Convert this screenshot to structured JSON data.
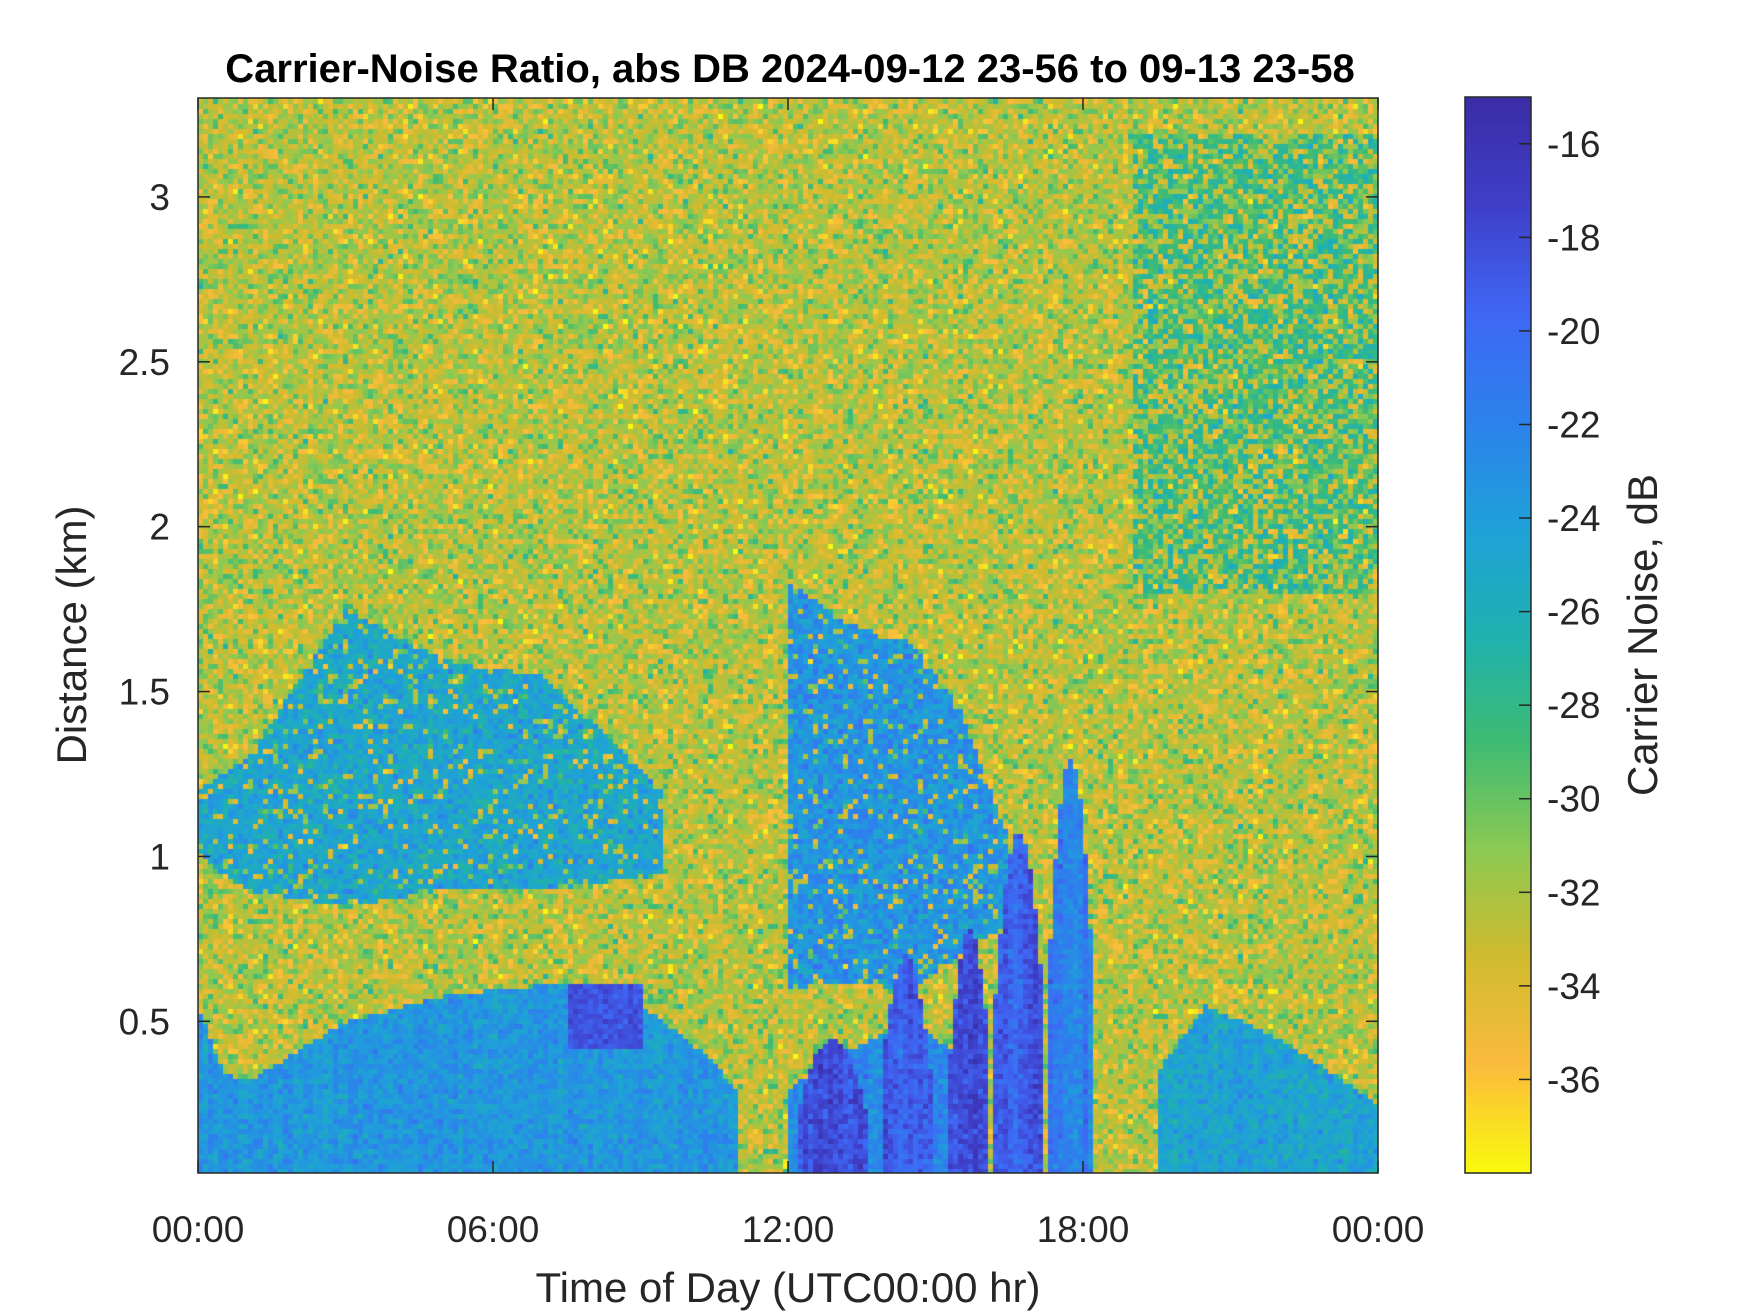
{
  "chart_data": {
    "type": "heatmap",
    "title": "Carrier-Noise Ratio, abs DB 2024-09-12 23-56 to 09-13 23-58",
    "xlabel": "Time of Day (UTC00:00 hr)",
    "ylabel": "Distance (km)",
    "xlim": [
      0,
      24
    ],
    "ylim": [
      0.04,
      3.3
    ],
    "x_ticks": [
      {
        "value": 0,
        "label": "00:00"
      },
      {
        "value": 6,
        "label": "06:00"
      },
      {
        "value": 12,
        "label": "12:00"
      },
      {
        "value": 18,
        "label": "18:00"
      },
      {
        "value": 24,
        "label": "00:00"
      }
    ],
    "y_ticks": [
      {
        "value": 0.5,
        "label": "0.5"
      },
      {
        "value": 1,
        "label": "1"
      },
      {
        "value": 1.5,
        "label": "1.5"
      },
      {
        "value": 2,
        "label": "2"
      },
      {
        "value": 2.5,
        "label": "2.5"
      },
      {
        "value": 3,
        "label": "3"
      }
    ],
    "colorbar": {
      "label": "Carrier Noise, dB",
      "clim": [
        -38,
        -15
      ],
      "colormap": "parula-reversed",
      "colors": [
        "#f9fb0e",
        "#fbbc3d",
        "#d1bb2e",
        "#8dca53",
        "#3fbc73",
        "#1fb2b0",
        "#1fa1d9",
        "#2d82ec",
        "#3f67f5",
        "#3f3fc8",
        "#3b2da6"
      ],
      "ticks": [
        {
          "value": -36,
          "label": "-36"
        },
        {
          "value": -34,
          "label": "-34"
        },
        {
          "value": -32,
          "label": "-32"
        },
        {
          "value": -30,
          "label": "-30"
        },
        {
          "value": -28,
          "label": "-28"
        },
        {
          "value": -26,
          "label": "-26"
        },
        {
          "value": -24,
          "label": "-24"
        },
        {
          "value": -22,
          "label": "-22"
        },
        {
          "value": -20,
          "label": "-20"
        },
        {
          "value": -18,
          "label": "-18"
        },
        {
          "value": -16,
          "label": "-16"
        }
      ]
    },
    "field": {
      "background_db": -32.5,
      "noise_db": 2.8,
      "regions": [
        {
          "kind": "lower_layer",
          "x": [
            0.0,
            0.5,
            1.0,
            3.0,
            5.0,
            7.5,
            8.5,
            9.5,
            10.5,
            11.0
          ],
          "top": [
            0.55,
            0.35,
            0.32,
            0.5,
            0.58,
            0.62,
            0.6,
            0.5,
            0.38,
            0.28
          ],
          "db": -23.5
        },
        {
          "kind": "lower_layer",
          "x": [
            12.0,
            13.0,
            14.5,
            15.5,
            16.0
          ],
          "top": [
            0.3,
            0.4,
            0.5,
            0.4,
            0.35
          ],
          "db": -22.5
        },
        {
          "kind": "lower_layer",
          "x": [
            19.5,
            20.5,
            22.0,
            23.0,
            24.0
          ],
          "top": [
            0.35,
            0.55,
            0.45,
            0.35,
            0.25
          ],
          "db": -24.5
        },
        {
          "kind": "elevated_layer",
          "x": [
            0.0,
            1.0,
            3.0,
            5.0,
            7.0,
            9.5
          ],
          "bottom": [
            1.0,
            0.9,
            0.85,
            0.9,
            0.9,
            0.95
          ],
          "top": [
            1.2,
            1.3,
            1.75,
            1.6,
            1.55,
            1.2
          ],
          "db": -24.8
        },
        {
          "kind": "elevated_layer",
          "x": [
            12.0,
            13.0,
            14.5,
            15.5,
            16.5
          ],
          "bottom": [
            0.6,
            0.62,
            0.6,
            0.7,
            0.8
          ],
          "top": [
            1.85,
            1.72,
            1.65,
            1.45,
            1.05
          ],
          "db": -23.2
        },
        {
          "kind": "plume",
          "x0": 12.2,
          "x1": 13.6,
          "top": 0.45,
          "db": -18.5
        },
        {
          "kind": "plume",
          "x0": 13.9,
          "x1": 14.9,
          "top": 0.7,
          "db": -19.0
        },
        {
          "kind": "plume",
          "x0": 15.3,
          "x1": 16.1,
          "top": 0.78,
          "db": -18.2
        },
        {
          "kind": "plume",
          "x0": 16.2,
          "x1": 17.2,
          "top": 1.08,
          "db": -18.8
        },
        {
          "kind": "plume",
          "x0": 17.3,
          "x1": 18.2,
          "top": 1.3,
          "db": -21.5
        },
        {
          "kind": "patch",
          "x0": 7.5,
          "x1": 9.0,
          "y0": 0.42,
          "y1": 0.62,
          "db": -18.5
        },
        {
          "kind": "upper_moist",
          "x0": 19.0,
          "x1": 24.0,
          "y0": 1.8,
          "y1": 3.2,
          "db": -28.0
        }
      ]
    }
  }
}
